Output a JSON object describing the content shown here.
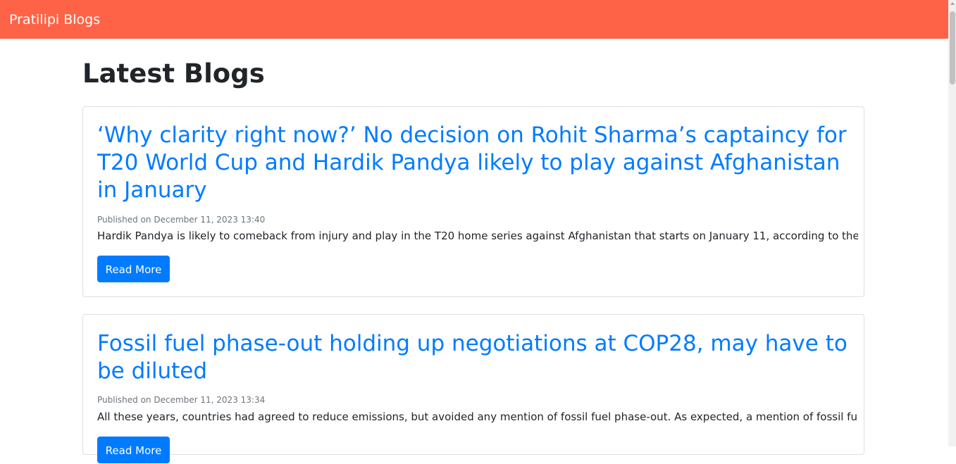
{
  "navbar": {
    "brand": "Pratilipi Blogs"
  },
  "page": {
    "heading": "Latest Blogs"
  },
  "blogs": [
    {
      "title": "‘Why clarity right now?’ No decision on Rohit Sharma’s captaincy for T20 World Cup and Hardik Pandya likely to play against Afghanistan in January",
      "published": "Published on December 11, 2023 13:40",
      "excerpt": "Hardik Pandya is likely to comeback from injury and play in the T20 home series against Afghanistan that starts on January 11, according to the BCCI ...",
      "button": "Read More"
    },
    {
      "title": "Fossil fuel phase-out holding up negotiations at COP28, may have to be diluted",
      "published": "Published on December 11, 2023 13:34",
      "excerpt": "All these years, countries had agreed to reduce emissions, but avoided any mention of fossil fuel phase-out. As expected, a mention of fossil fuel...",
      "button": "Read More"
    }
  ],
  "colors": {
    "navbar": "#ff6347",
    "link": "#007bff",
    "button": "#007bff",
    "muted": "#6c757d"
  }
}
